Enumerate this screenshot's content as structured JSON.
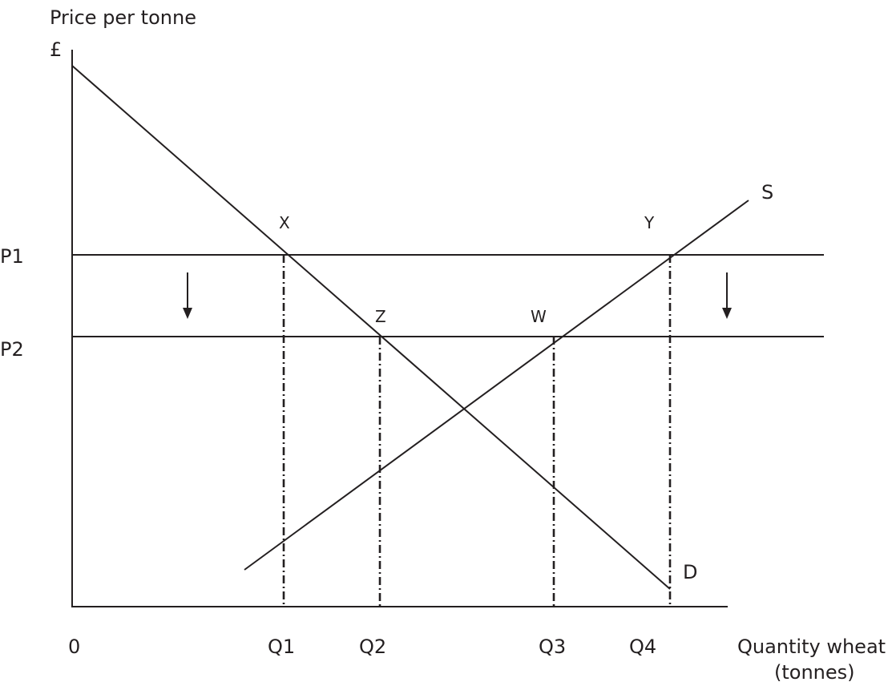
{
  "axes": {
    "y_label": "Price per tonne",
    "y_unit": "£",
    "x_label_line1": "Quantity wheat",
    "x_label_line2": "(tonnes)",
    "origin": "0"
  },
  "prices": {
    "p1": "P1",
    "p2": "P2"
  },
  "quantities": {
    "q1": "Q1",
    "q2": "Q2",
    "q3": "Q3",
    "q4": "Q4"
  },
  "curves": {
    "supply": "S",
    "demand": "D"
  },
  "points": {
    "x": "X",
    "y": "Y",
    "z": "Z",
    "w": "W"
  },
  "colors": {
    "ink": "#231f20",
    "background": "#ffffff"
  }
}
